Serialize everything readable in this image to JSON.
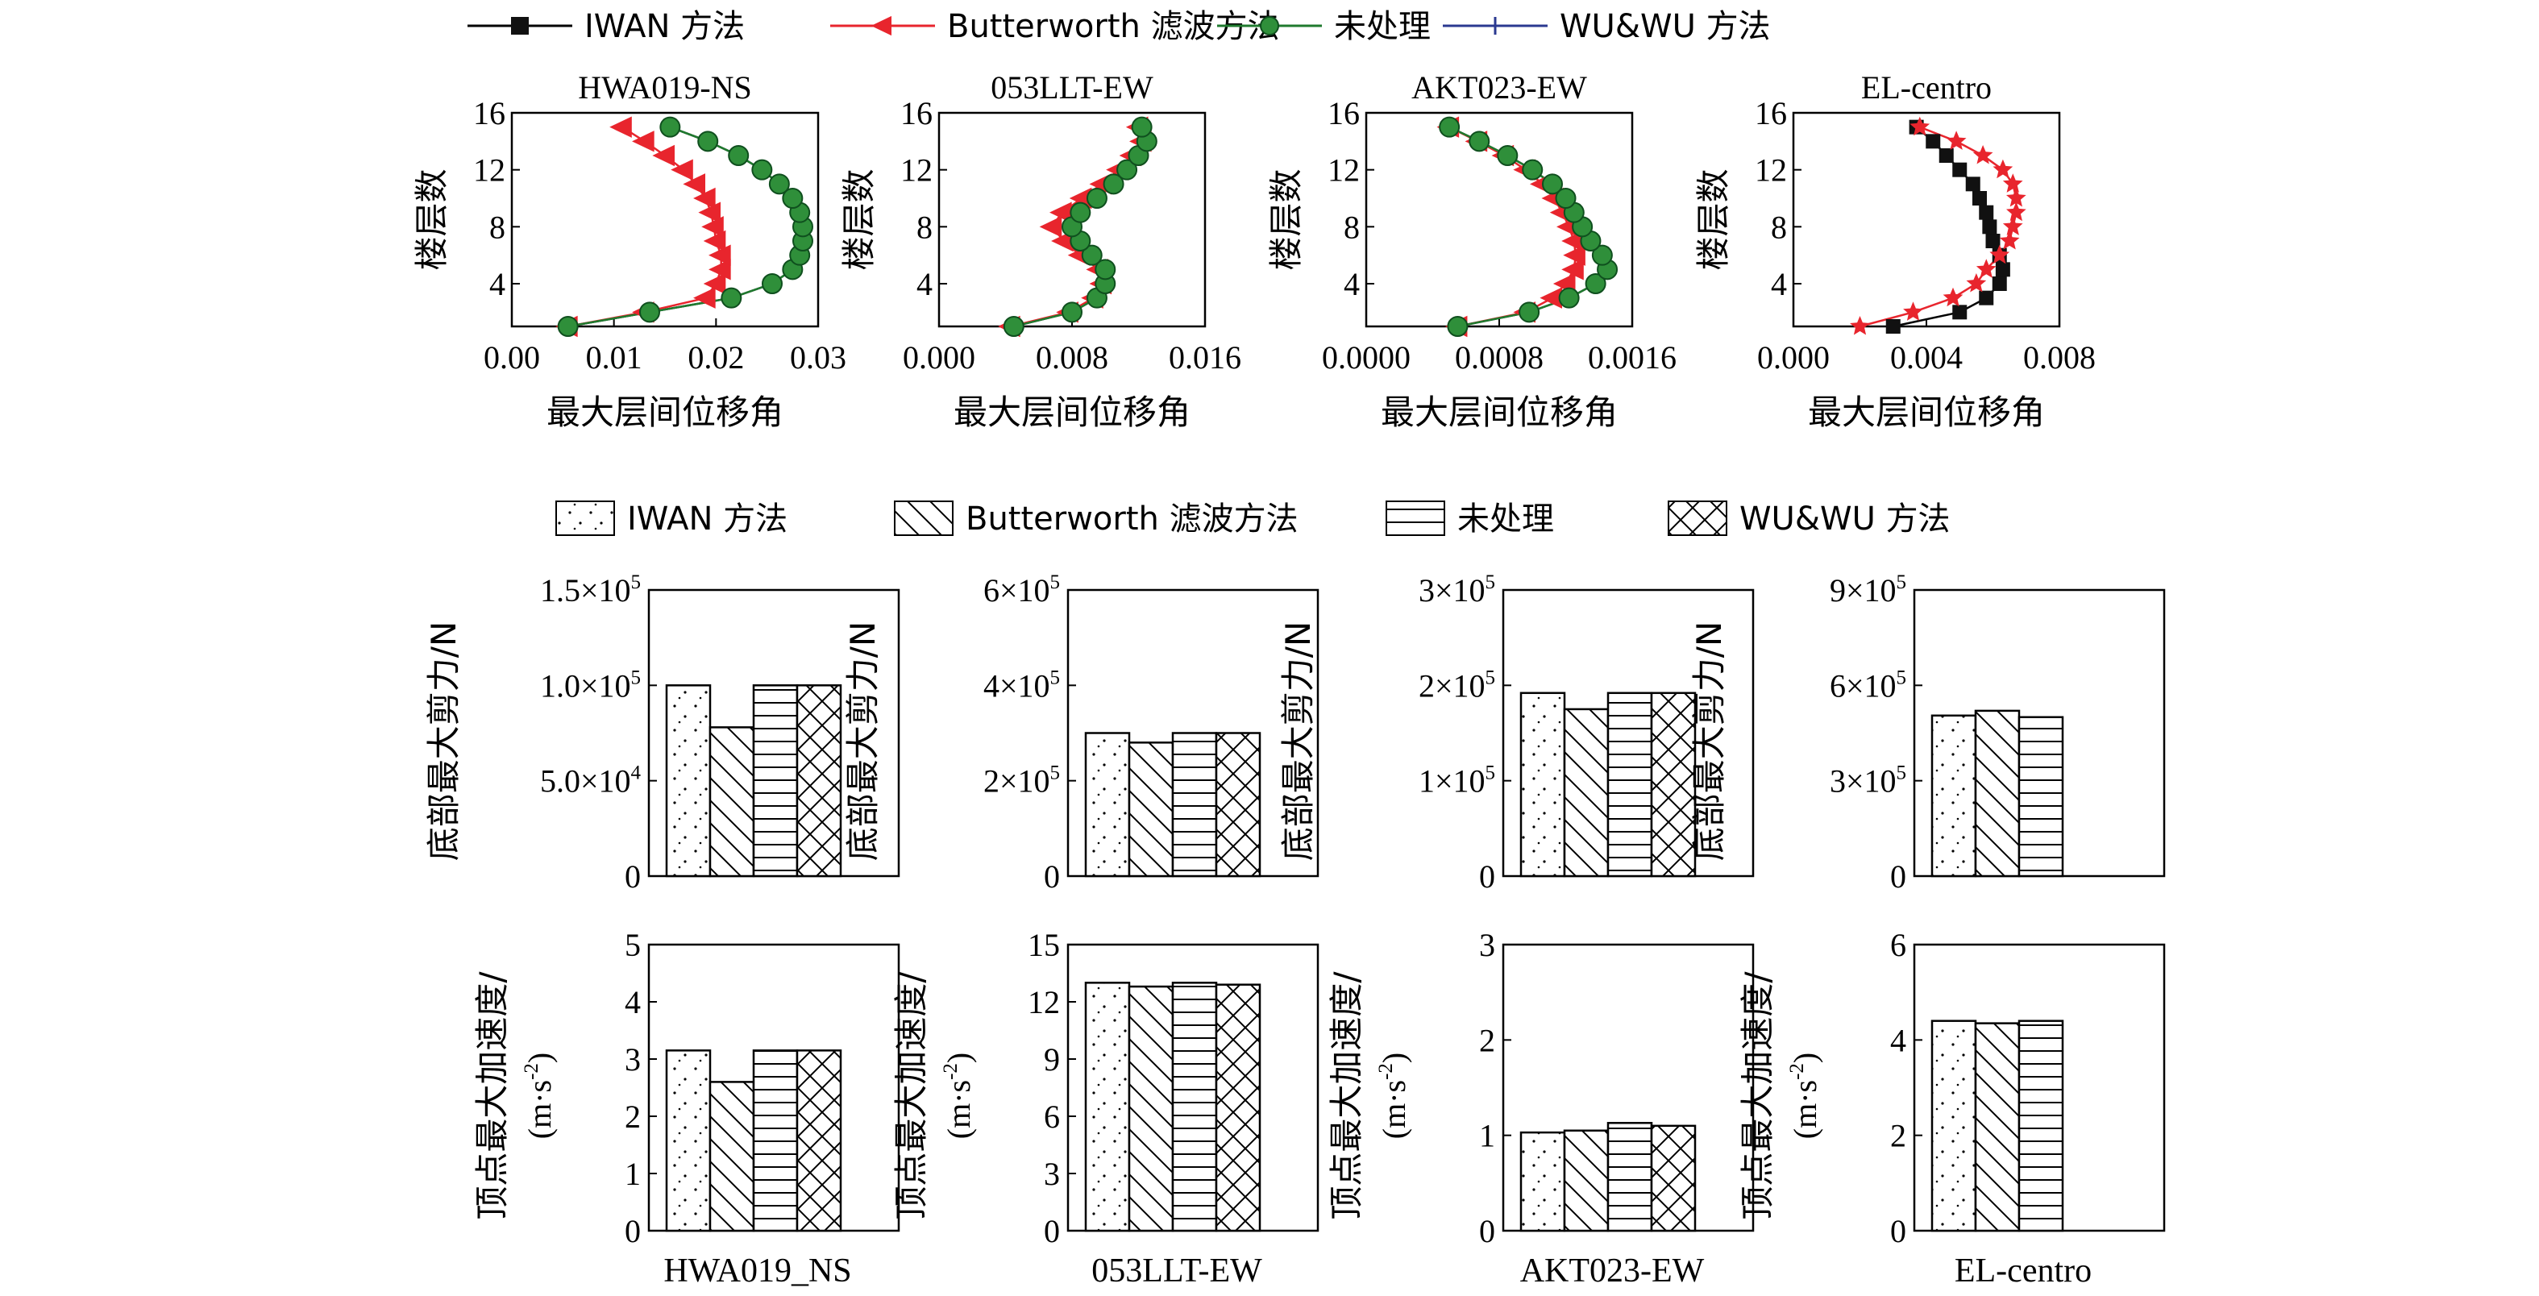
{
  "legend_top": {
    "items": [
      {
        "label": "IWAN 方法",
        "color": "#000000",
        "marker": "square"
      },
      {
        "label": "Butterworth 滤波方法",
        "color": "#e8252d",
        "marker": "triangle-left"
      },
      {
        "label": "未处理",
        "color": "#1f7a2e",
        "marker": "circle"
      },
      {
        "label": "WU&WU 方法",
        "color": "#2b3990",
        "marker": "tick"
      }
    ]
  },
  "legend_bars": {
    "items": [
      {
        "label": "IWAN 方法",
        "pattern": "dots"
      },
      {
        "label": "Butterworth 滤波方法",
        "pattern": "diag"
      },
      {
        "label": "未处理",
        "pattern": "horiz"
      },
      {
        "label": "WU&WU 方法",
        "pattern": "cross"
      }
    ]
  },
  "chart_data": [
    {
      "type": "line",
      "title": "HWA019-NS",
      "xlabel": "最大层间位移角",
      "ylabel": "楼层数",
      "xlim": [
        0,
        0.03
      ],
      "ylim": [
        1,
        16
      ],
      "xticks": [
        "0.00",
        "0.01",
        "0.02",
        "0.03"
      ],
      "yticks": [
        "4",
        "8",
        "12",
        "16"
      ],
      "floors": [
        1,
        2,
        3,
        4,
        5,
        6,
        7,
        8,
        9,
        10,
        11,
        12,
        13,
        14,
        15
      ],
      "series": [
        {
          "name": "IWAN 方法",
          "values": [
            0.0055,
            0.0135,
            0.0215,
            0.0255,
            0.0275,
            0.0282,
            0.0285,
            0.0285,
            0.0282,
            0.0275,
            0.0262,
            0.0245,
            0.0222,
            0.0192,
            0.0155
          ]
        },
        {
          "name": "Butterworth 滤波方法",
          "values": [
            0.0055,
            0.013,
            0.019,
            0.02,
            0.0205,
            0.0205,
            0.02,
            0.0198,
            0.0195,
            0.019,
            0.018,
            0.0168,
            0.015,
            0.013,
            0.0108
          ]
        },
        {
          "name": "未处理",
          "values": [
            0.0055,
            0.0135,
            0.0215,
            0.0255,
            0.0275,
            0.0282,
            0.0285,
            0.0285,
            0.0282,
            0.0275,
            0.0262,
            0.0245,
            0.0222,
            0.0192,
            0.0155
          ]
        },
        {
          "name": "WU&WU 方法",
          "values": [
            0.0055,
            0.0135,
            0.0215,
            0.0255,
            0.0275,
            0.0282,
            0.0285,
            0.0285,
            0.0282,
            0.0275,
            0.0262,
            0.0245,
            0.0222,
            0.0192,
            0.0155
          ]
        }
      ]
    },
    {
      "type": "line",
      "title": "053LLT-EW",
      "xlabel": "最大层间位移角",
      "ylabel": "楼层数",
      "xlim": [
        0,
        0.016
      ],
      "ylim": [
        1,
        16
      ],
      "xticks": [
        "0.000",
        "0.008",
        "0.016"
      ],
      "yticks": [
        "4",
        "8",
        "12",
        "16"
      ],
      "floors": [
        1,
        2,
        3,
        4,
        5,
        6,
        7,
        8,
        9,
        10,
        11,
        12,
        13,
        14,
        15
      ],
      "series": [
        {
          "name": "IWAN 方法",
          "values": [
            0.0045,
            0.008,
            0.0095,
            0.01,
            0.01,
            0.0092,
            0.0085,
            0.008,
            0.0085,
            0.0095,
            0.0105,
            0.0113,
            0.012,
            0.0125,
            0.0122
          ]
        },
        {
          "name": "Butterworth 滤波方法",
          "values": [
            0.0043,
            0.0078,
            0.0093,
            0.0098,
            0.0096,
            0.0085,
            0.0075,
            0.0068,
            0.0074,
            0.0086,
            0.0098,
            0.0108,
            0.0116,
            0.0122,
            0.012
          ]
        },
        {
          "name": "未处理",
          "values": [
            0.0045,
            0.008,
            0.0095,
            0.01,
            0.01,
            0.0092,
            0.0085,
            0.008,
            0.0085,
            0.0095,
            0.0105,
            0.0113,
            0.012,
            0.0125,
            0.0122
          ]
        },
        {
          "name": "WU&WU 方法",
          "values": [
            0.0045,
            0.008,
            0.0095,
            0.01,
            0.01,
            0.0092,
            0.0085,
            0.008,
            0.0085,
            0.0095,
            0.0105,
            0.0113,
            0.012,
            0.0125,
            0.0122
          ]
        }
      ]
    },
    {
      "type": "line",
      "title": "AKT023-EW",
      "xlabel": "最大层间位移角",
      "ylabel": "楼层数",
      "xlim": [
        0,
        0.0016
      ],
      "ylim": [
        1,
        16
      ],
      "xticks": [
        "0.0000",
        "0.0008",
        "0.0016"
      ],
      "yticks": [
        "4",
        "8",
        "12",
        "16"
      ],
      "floors": [
        1,
        2,
        3,
        4,
        5,
        6,
        7,
        8,
        9,
        10,
        11,
        12,
        13,
        14,
        15
      ],
      "series": [
        {
          "name": "IWAN 方法",
          "values": [
            0.00055,
            0.00098,
            0.00122,
            0.00138,
            0.00145,
            0.00142,
            0.00135,
            0.0013,
            0.00125,
            0.0012,
            0.00112,
            0.001,
            0.00085,
            0.00068,
            0.0005
          ]
        },
        {
          "name": "Butterworth 滤波方法",
          "values": [
            0.00055,
            0.00096,
            0.00112,
            0.0012,
            0.00125,
            0.00126,
            0.00125,
            0.00122,
            0.00118,
            0.00113,
            0.00106,
            0.00096,
            0.00083,
            0.00067,
            0.0005
          ]
        },
        {
          "name": "未处理",
          "values": [
            0.00055,
            0.00098,
            0.00122,
            0.00138,
            0.00145,
            0.00142,
            0.00135,
            0.0013,
            0.00125,
            0.0012,
            0.00112,
            0.001,
            0.00085,
            0.00068,
            0.0005
          ]
        },
        {
          "name": "WU&WU 方法",
          "values": [
            0.00055,
            0.00098,
            0.00122,
            0.00138,
            0.00145,
            0.00142,
            0.00135,
            0.0013,
            0.00125,
            0.0012,
            0.00112,
            0.001,
            0.00085,
            0.00068,
            0.0005
          ]
        }
      ]
    },
    {
      "type": "line",
      "title": "EL-centro",
      "xlabel": "最大层间位移角",
      "ylabel": "楼层数",
      "xlim": [
        0,
        0.008
      ],
      "ylim": [
        1,
        16
      ],
      "xticks": [
        "0.000",
        "0.004",
        "0.008"
      ],
      "yticks": [
        "4",
        "8",
        "12",
        "16"
      ],
      "floors": [
        1,
        2,
        3,
        4,
        5,
        6,
        7,
        8,
        9,
        10,
        11,
        12,
        13,
        14,
        15
      ],
      "series": [
        {
          "name": "IWAN 方法",
          "values": [
            0.003,
            0.005,
            0.0058,
            0.0062,
            0.0063,
            0.0062,
            0.006,
            0.0059,
            0.0058,
            0.0056,
            0.0054,
            0.005,
            0.0046,
            0.0042,
            0.0037
          ]
        },
        {
          "name": "Butterworth 滤波方法",
          "values": [
            0.002,
            0.0036,
            0.0048,
            0.0055,
            0.0058,
            0.0062,
            0.0065,
            0.0066,
            0.0067,
            0.0067,
            0.0066,
            0.0063,
            0.0057,
            0.0049,
            0.0038
          ]
        }
      ]
    },
    {
      "type": "bar",
      "ylabel": "底部最大剪力/N",
      "ylim": [
        0,
        150000
      ],
      "ytick_values": [
        0,
        50000,
        100000,
        150000
      ],
      "yticks": [
        "0",
        "5.0×10^4",
        "1.0×10^5",
        "1.5×10^5"
      ],
      "categories": [
        "IWAN 方法",
        "Butterworth 滤波方法",
        "未处理",
        "WU&WU 方法"
      ],
      "values": [
        100000,
        78000,
        100000,
        100000
      ]
    },
    {
      "type": "bar",
      "ylabel": "底部最大剪力/N",
      "ylim": [
        0,
        600000
      ],
      "ytick_values": [
        0,
        200000,
        400000,
        600000
      ],
      "yticks": [
        "0",
        "2×10^5",
        "4×10^5",
        "6×10^5"
      ],
      "categories": [
        "IWAN 方法",
        "Butterworth 滤波方法",
        "未处理",
        "WU&WU 方法"
      ],
      "values": [
        300000,
        280000,
        300000,
        300000
      ]
    },
    {
      "type": "bar",
      "ylabel": "底部最大剪力/N",
      "ylim": [
        0,
        300000
      ],
      "ytick_values": [
        0,
        100000,
        200000,
        300000
      ],
      "yticks": [
        "0",
        "1×10^5",
        "2×10^5",
        "3×10^5"
      ],
      "categories": [
        "IWAN 方法",
        "Butterworth 滤波方法",
        "未处理",
        "WU&WU 方法"
      ],
      "values": [
        192000,
        175000,
        192000,
        192000
      ]
    },
    {
      "type": "bar",
      "ylabel": "底部最大剪力/N",
      "ylim": [
        0,
        900000
      ],
      "ytick_values": [
        0,
        300000,
        600000,
        900000
      ],
      "yticks": [
        "0",
        "3×10^5",
        "6×10^5",
        "9×10^5"
      ],
      "categories": [
        "IWAN 方法",
        "Butterworth 滤波方法",
        "未处理"
      ],
      "values": [
        505000,
        520000,
        500000
      ]
    },
    {
      "type": "bar",
      "ylabel": "顶点最大加速度/",
      "ylabel2": "(m·s^-2)",
      "xlabel": "HWA019_NS",
      "ylim": [
        0,
        5
      ],
      "ytick_values": [
        0,
        1,
        2,
        3,
        4,
        5
      ],
      "yticks": [
        "0",
        "1",
        "2",
        "3",
        "4",
        "5"
      ],
      "categories": [
        "IWAN 方法",
        "Butterworth 滤波方法",
        "未处理",
        "WU&WU 方法"
      ],
      "values": [
        3.15,
        2.6,
        3.15,
        3.15
      ]
    },
    {
      "type": "bar",
      "ylabel": "顶点最大加速度/",
      "ylabel2": "(m·s^-2)",
      "xlabel": "053LLT-EW",
      "ylim": [
        0,
        15
      ],
      "ytick_values": [
        0,
        3,
        6,
        9,
        12,
        15
      ],
      "yticks": [
        "0",
        "3",
        "6",
        "9",
        "12",
        "15"
      ],
      "categories": [
        "IWAN 方法",
        "Butterworth 滤波方法",
        "未处理",
        "WU&WU 方法"
      ],
      "values": [
        13.0,
        12.8,
        13.0,
        12.9
      ]
    },
    {
      "type": "bar",
      "ylabel": "顶点最大加速度/",
      "ylabel2": "(m·s^-2)",
      "xlabel": "AKT023-EW",
      "ylim": [
        0,
        3
      ],
      "ytick_values": [
        0,
        1,
        2,
        3
      ],
      "yticks": [
        "0",
        "1",
        "2",
        "3"
      ],
      "categories": [
        "IWAN 方法",
        "Butterworth 滤波方法",
        "未处理",
        "WU&WU 方法"
      ],
      "values": [
        1.03,
        1.05,
        1.13,
        1.1
      ]
    },
    {
      "type": "bar",
      "ylabel": "顶点最大加速度/",
      "ylabel2": "(m·s^-2)",
      "xlabel": "EL-centro",
      "ylim": [
        0,
        6
      ],
      "ytick_values": [
        0,
        2,
        4,
        6
      ],
      "yticks": [
        "0",
        "2",
        "4",
        "6"
      ],
      "categories": [
        "IWAN 方法",
        "Butterworth 滤波方法",
        "未处理"
      ],
      "values": [
        4.4,
        4.35,
        4.4
      ]
    }
  ]
}
